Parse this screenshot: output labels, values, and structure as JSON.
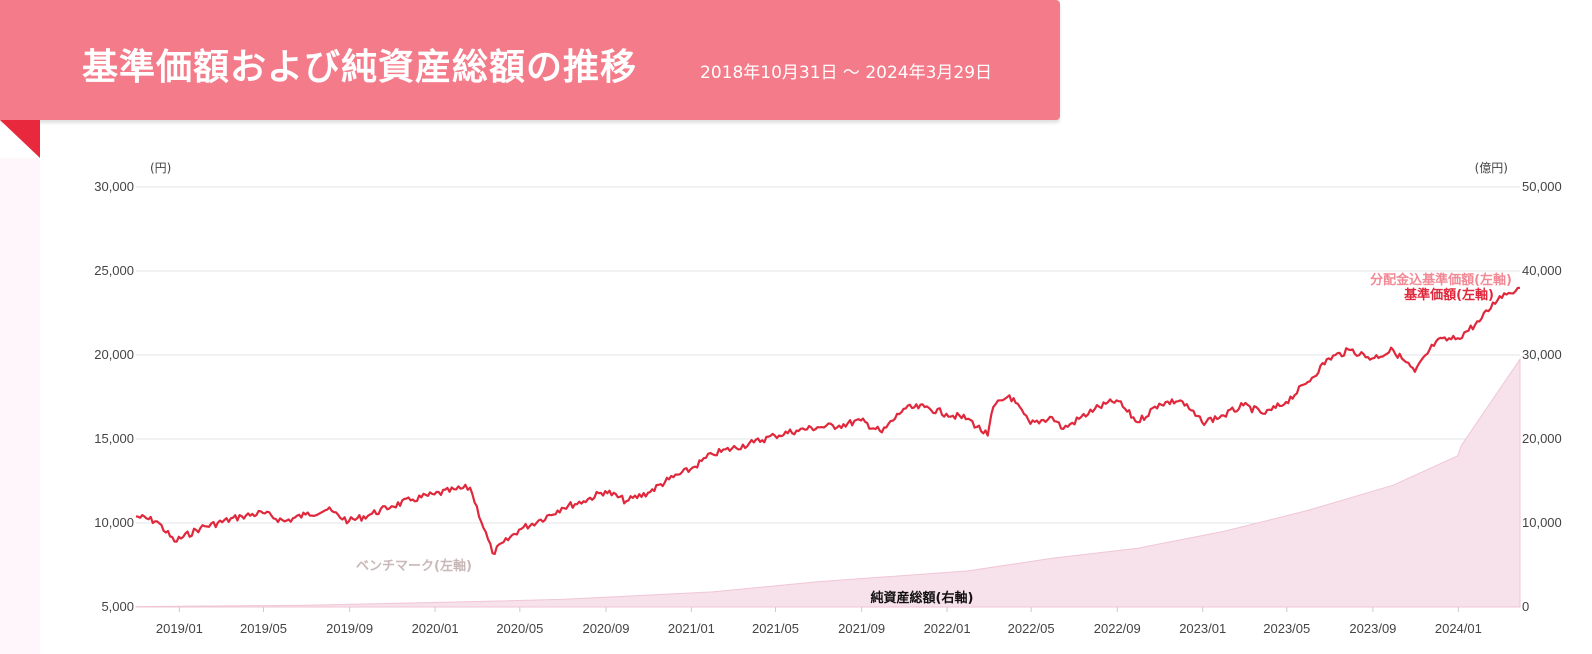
{
  "header": {
    "title": "基準価額および純資産総額の推移",
    "period": "2018年10月31日 ～ 2024年3月29日"
  },
  "colors": {
    "header_bg": "#f47c8a",
    "ribbon": "#e8283c",
    "nav_line": "#e0283c",
    "nav_div_label": "#f28a96",
    "benchmark_label": "#c9b8b8",
    "aum_fill": "#f7e1ea",
    "aum_stroke": "#f0c6d6"
  },
  "chart_data": {
    "type": "line",
    "left_axis": {
      "unit": "(円)",
      "min": 5000,
      "max": 30000,
      "ticks": [
        "5,000",
        "10,000",
        "15,000",
        "20,000",
        "25,000",
        "30,000"
      ]
    },
    "right_axis": {
      "unit": "(億円)",
      "min": 0,
      "max": 50000,
      "ticks": [
        "0",
        "10,000",
        "20,000",
        "30,000",
        "40,000",
        "50,000"
      ]
    },
    "x_range": [
      "2018-10-31",
      "2024-03-29"
    ],
    "x_ticks": [
      "2019/01",
      "2019/05",
      "2019/09",
      "2020/01",
      "2020/05",
      "2020/09",
      "2021/01",
      "2021/05",
      "2021/09",
      "2022/01",
      "2022/05",
      "2022/09",
      "2023/01",
      "2023/05",
      "2023/09",
      "2024/01"
    ],
    "grid": true,
    "series": [
      {
        "name": "基準価額(左軸)",
        "axis": "left",
        "x": [
          "2018-10-31",
          "2018-11-30",
          "2018-12-25",
          "2019-01-31",
          "2019-03-31",
          "2019-04-30",
          "2019-05-31",
          "2019-06-30",
          "2019-07-31",
          "2019-08-31",
          "2019-09-30",
          "2019-10-31",
          "2019-11-30",
          "2019-12-31",
          "2020-01-31",
          "2020-02-20",
          "2020-03-23",
          "2020-04-30",
          "2020-05-31",
          "2020-06-30",
          "2020-07-31",
          "2020-08-31",
          "2020-09-30",
          "2020-10-31",
          "2020-11-30",
          "2020-12-31",
          "2021-01-31",
          "2021-03-31",
          "2021-04-30",
          "2021-05-31",
          "2021-06-30",
          "2021-07-31",
          "2021-08-31",
          "2021-09-30",
          "2021-10-31",
          "2021-11-30",
          "2021-12-31",
          "2022-01-31",
          "2022-02-28",
          "2022-03-08",
          "2022-03-31",
          "2022-04-30",
          "2022-05-31",
          "2022-06-16",
          "2022-07-31",
          "2022-08-31",
          "2022-09-30",
          "2022-10-31",
          "2022-11-30",
          "2022-12-31",
          "2023-01-31",
          "2023-02-28",
          "2023-03-31",
          "2023-04-30",
          "2023-05-31",
          "2023-06-30",
          "2023-07-31",
          "2023-08-31",
          "2023-09-30",
          "2023-10-31",
          "2023-11-30",
          "2023-12-31",
          "2024-01-31",
          "2024-02-29",
          "2024-03-29"
        ],
        "values": [
          10400,
          10100,
          8900,
          9700,
          10400,
          10600,
          10100,
          10500,
          10800,
          10100,
          10500,
          11000,
          11400,
          11700,
          12000,
          12100,
          8200,
          9600,
          10200,
          10900,
          11300,
          11900,
          11300,
          11800,
          12600,
          13200,
          14100,
          14800,
          15200,
          15500,
          15700,
          15800,
          16100,
          15400,
          16800,
          16900,
          16500,
          16200,
          15200,
          16900,
          17600,
          15900,
          16300,
          15600,
          16800,
          17300,
          16000,
          17100,
          17300,
          16000,
          16400,
          17000,
          16500,
          17200,
          18400,
          19800,
          20300,
          19800,
          20300,
          19000,
          20800,
          21000,
          22000,
          23500,
          24000
        ]
      },
      {
        "name": "分配金込基準価額(左軸)",
        "axis": "left",
        "x": [
          "2018-10-31",
          "2024-03-29"
        ],
        "values": [
          10400,
          24000
        ]
      },
      {
        "name": "ベンチマーク(左軸)",
        "axis": "left",
        "x": [
          "2018-10-31",
          "2024-03-29"
        ],
        "values": [
          10400,
          24000
        ]
      },
      {
        "name": "純資産総額(右軸)",
        "axis": "right",
        "type": "area",
        "x": [
          "2018-10-31",
          "2019-06-30",
          "2020-01-31",
          "2020-06-30",
          "2021-01-31",
          "2021-06-30",
          "2022-01-31",
          "2022-05-31",
          "2022-09-30",
          "2023-01-31",
          "2023-05-31",
          "2023-09-30",
          "2023-12-31",
          "2024-01-05",
          "2024-03-29"
        ],
        "values": [
          50,
          200,
          600,
          900,
          1800,
          3000,
          4300,
          5800,
          7000,
          9000,
          11500,
          14500,
          18000,
          19200,
          29500
        ]
      }
    ]
  }
}
